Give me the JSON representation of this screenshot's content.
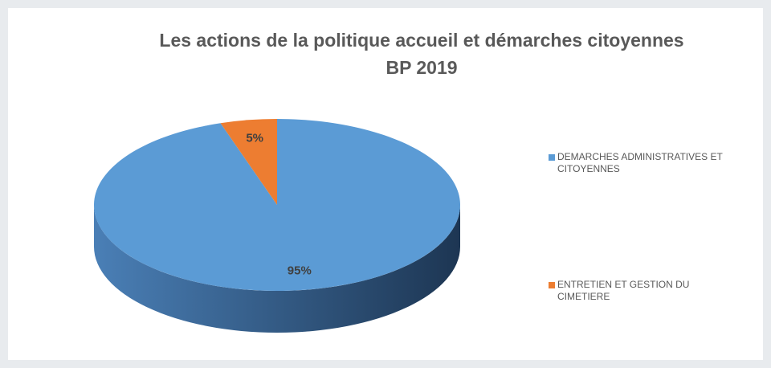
{
  "chart_data": {
    "type": "pie3d",
    "title": "Les actions de la politique accueil et démarches citoyennes",
    "subtitle": "BP 2019",
    "categories": [
      "DEMARCHES ADMINISTRATIVES ET CITOYENNES",
      "ENTRETIEN ET GESTION DU CIMETIERE"
    ],
    "values": [
      95,
      5
    ],
    "value_labels": [
      "95%",
      "5%"
    ],
    "colors": [
      "#5b9bd5",
      "#ed7d31"
    ],
    "legend": "right"
  }
}
